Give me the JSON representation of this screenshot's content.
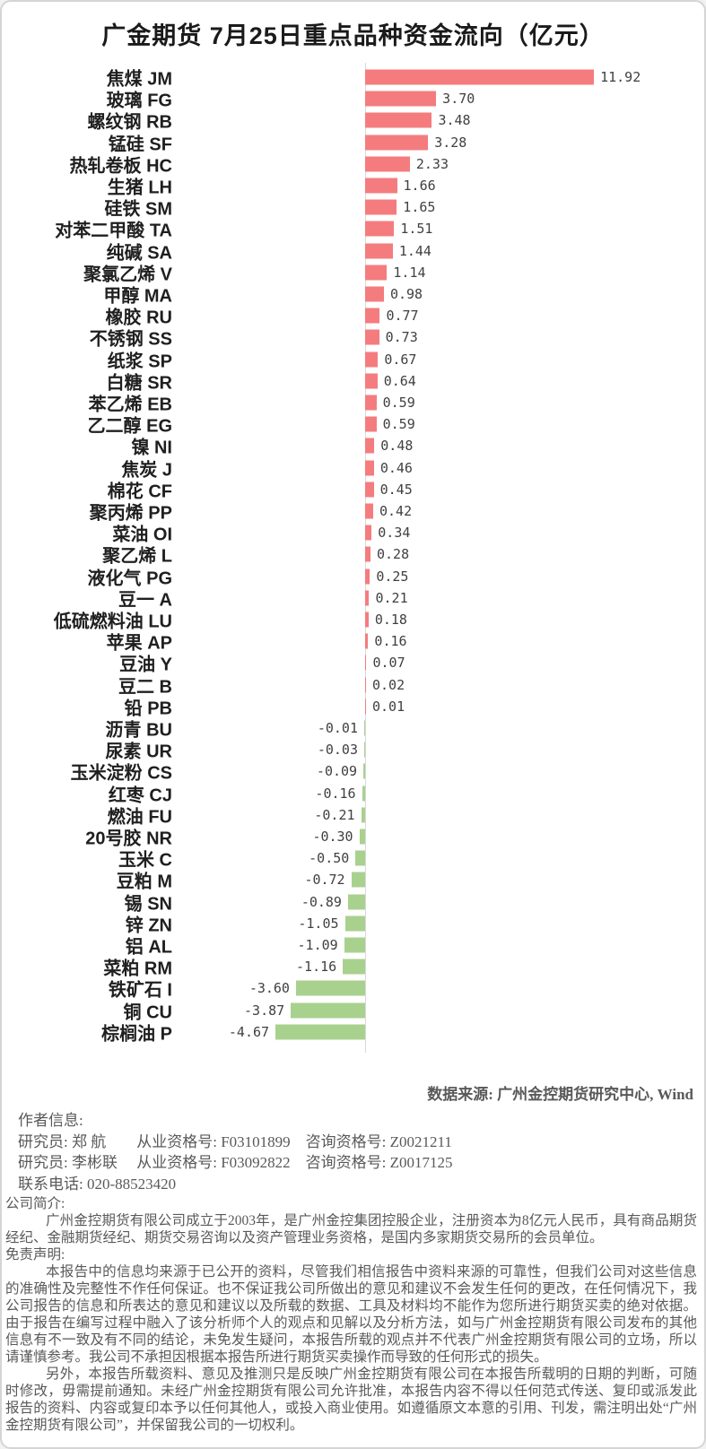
{
  "title": "广金期货 7月25日重点品种资金流向（亿元）",
  "chart_data": {
    "type": "bar",
    "orientation": "horizontal",
    "title": "广金期货 7月25日重点品种资金流向（亿元）",
    "value_unit": "亿元",
    "xlim": [
      -5,
      12.5
    ],
    "grid": "zero-baseline-only",
    "value_labels": "outside-end",
    "positive_color": "#f47c7e",
    "negative_color": "#a9d18e",
    "categories": [
      "焦煤 JM",
      "玻璃 FG",
      "螺纹钢 RB",
      "锰硅 SF",
      "热轧卷板 HC",
      "生猪 LH",
      "硅铁 SM",
      "对苯二甲酸 TA",
      "纯碱 SA",
      "聚氯乙烯 V",
      "甲醇 MA",
      "橡胶 RU",
      "不锈钢 SS",
      "纸浆 SP",
      "白糖 SR",
      "苯乙烯 EB",
      "乙二醇 EG",
      "镍 NI",
      "焦炭 J",
      "棉花 CF",
      "聚丙烯 PP",
      "菜油 OI",
      "聚乙烯 L",
      "液化气 PG",
      "豆一 A",
      "低硫燃料油 LU",
      "苹果 AP",
      "豆油 Y",
      "豆二 B",
      "铅 PB",
      "沥青 BU",
      "尿素 UR",
      "玉米淀粉 CS",
      "红枣 CJ",
      "燃油 FU",
      "20号胶 NR",
      "玉米 C",
      "豆粕 M",
      "锡 SN",
      "锌 ZN",
      "铝 AL",
      "菜粕 RM",
      "铁矿石 I",
      "铜 CU",
      "棕榈油 P"
    ],
    "values": [
      11.92,
      3.7,
      3.48,
      3.28,
      2.33,
      1.66,
      1.65,
      1.51,
      1.44,
      1.14,
      0.98,
      0.77,
      0.73,
      0.67,
      0.64,
      0.59,
      0.59,
      0.48,
      0.46,
      0.45,
      0.42,
      0.34,
      0.28,
      0.25,
      0.21,
      0.18,
      0.16,
      0.07,
      0.02,
      0.01,
      -0.01,
      -0.03,
      -0.09,
      -0.16,
      -0.21,
      -0.3,
      -0.5,
      -0.72,
      -0.89,
      -1.05,
      -1.09,
      -1.16,
      -3.6,
      -3.87,
      -4.67
    ]
  },
  "source_note": "数据来源: 广州金控期货研究中心, Wind",
  "author": {
    "heading": "作者信息:",
    "lines": [
      "研究员: 郑 航　　从业资格号: F03101899　咨询资格号: Z0021211",
      "研究员: 李彬联　 从业资格号: F03092822　咨询资格号: Z0017125",
      "联系电话: 020-88523420"
    ]
  },
  "company": {
    "heading": "公司简介:",
    "text": "广州金控期货有限公司成立于2003年，是广州金控集团控股企业，注册资本为8亿元人民币，具有商品期货经纪、金融期货经纪、期货交易咨询以及资产管理业务资格，是国内多家期货交易所的会员单位。"
  },
  "disclaimer": {
    "heading": "免责声明:",
    "paragraphs": [
      "本报告中的信息均来源于已公开的资料，尽管我们相信报告中资料来源的可靠性，但我们公司对这些信息的准确性及完整性不作任何保证。也不保证我公司所做出的意见和建议不会发生任何的更改，在任何情况下，我公司报告的信息和所表达的意见和建议以及所载的数据、工具及材料均不能作为您所进行期货买卖的绝对依据。由于报告在编写过程中融入了该分析师个人的观点和见解以及分析方法，如与广州金控期货有限公司发布的其他信息有不一致及有不同的结论，未免发生疑问，本报告所载的观点并不代表广州金控期货有限公司的立场，所以请谨慎参考。我公司不承担因根据本报告所进行期货买卖操作而导致的任何形式的损失。",
      "另外，本报告所载资料、意见及推测只是反映广州金控期货有限公司在本报告所载明的日期的判断，可随时修改，毋需提前通知。未经广州金控期货有限公司允许批准，本报告内容不得以任何范式传送、复印或派发此报告的资料、内容或复印本予以任何其他人，或投入商业使用。如遵循原文本意的引用、刊发，需注明出处“广州金控期货有限公司”，并保留我公司的一切权利。"
    ]
  }
}
